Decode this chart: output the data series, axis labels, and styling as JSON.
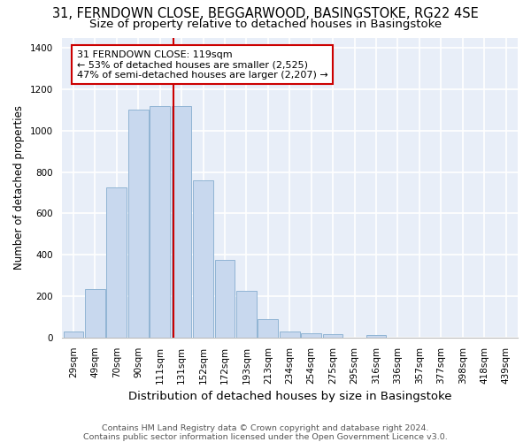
{
  "title_line1": "31, FERNDOWN CLOSE, BEGGARWOOD, BASINGSTOKE, RG22 4SE",
  "title_line2": "Size of property relative to detached houses in Basingstoke",
  "xlabel": "Distribution of detached houses by size in Basingstoke",
  "ylabel": "Number of detached properties",
  "categories": [
    "29sqm",
    "49sqm",
    "70sqm",
    "90sqm",
    "111sqm",
    "131sqm",
    "152sqm",
    "172sqm",
    "193sqm",
    "213sqm",
    "234sqm",
    "254sqm",
    "275sqm",
    "295sqm",
    "316sqm",
    "336sqm",
    "357sqm",
    "377sqm",
    "398sqm",
    "418sqm",
    "439sqm"
  ],
  "bar_heights": [
    30,
    235,
    725,
    1100,
    1120,
    1120,
    760,
    375,
    225,
    90,
    30,
    20,
    15,
    0,
    10,
    0,
    0,
    0,
    0,
    0,
    0
  ],
  "bar_color": "#c8d8ee",
  "bar_edge_color": "#90b4d4",
  "bg_color": "#e8eef8",
  "grid_color": "#ffffff",
  "vline_color": "#cc0000",
  "vline_x": 4.62,
  "ylim": [
    0,
    1450
  ],
  "yticks": [
    0,
    200,
    400,
    600,
    800,
    1000,
    1200,
    1400
  ],
  "ann_line1": "31 FERNDOWN CLOSE: 119sqm",
  "ann_line2": "← 53% of detached houses are smaller (2,525)",
  "ann_line3": "47% of semi-detached houses are larger (2,207) →",
  "ann_box_edgecolor": "#cc0000",
  "footnote1": "Contains HM Land Registry data © Crown copyright and database right 2024.",
  "footnote2": "Contains public sector information licensed under the Open Government Licence v3.0.",
  "title_fontsize": 10.5,
  "subtitle_fontsize": 9.5,
  "ylabel_fontsize": 8.5,
  "xlabel_fontsize": 9.5,
  "tick_fontsize": 7.5,
  "ann_fontsize": 8.0,
  "footnote_fontsize": 6.8
}
